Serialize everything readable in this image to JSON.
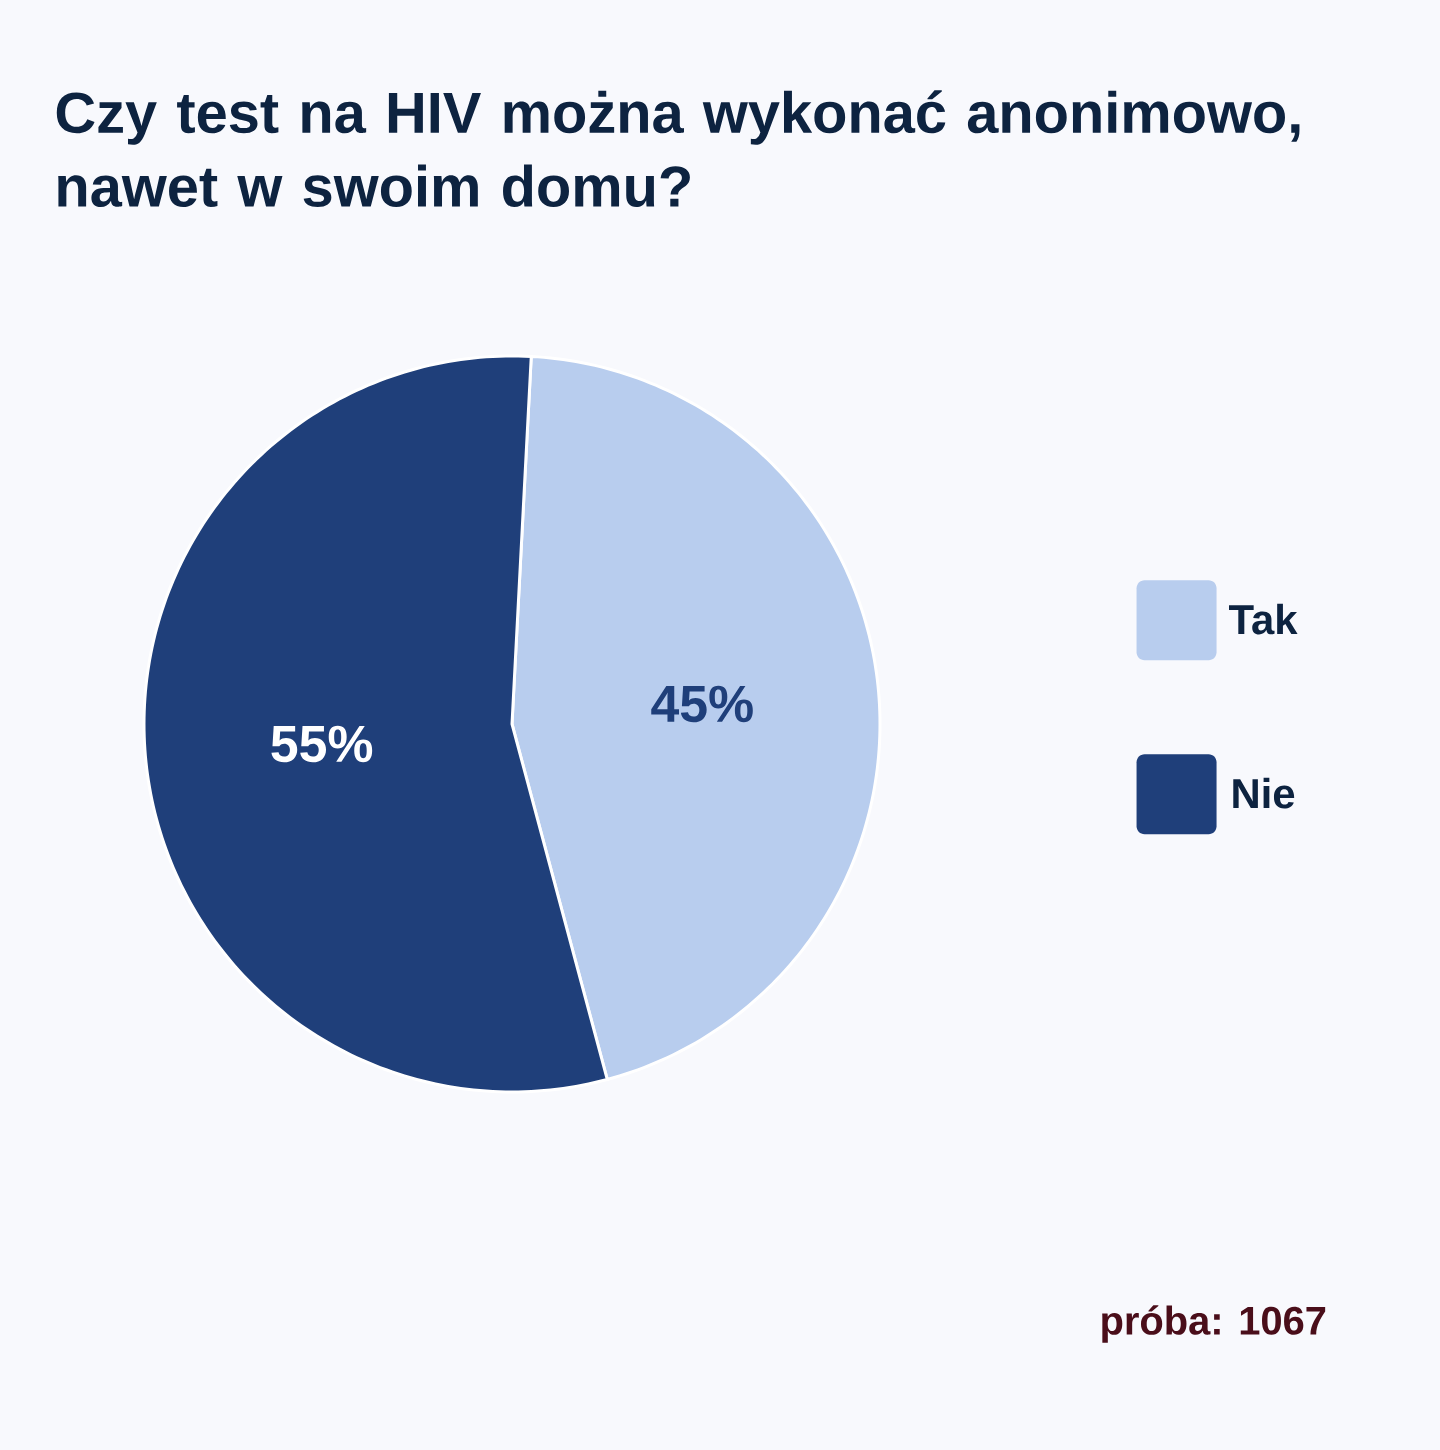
{
  "chart_data": {
    "type": "pie",
    "title": "Czy test na HIV można wykonać anonimowo, nawet w swoim domu?",
    "categories": [
      "Tak",
      "Nie"
    ],
    "values": [
      45,
      55
    ],
    "colors": [
      "#b8cdee",
      "#1f3f7a"
    ],
    "value_labels": [
      "45%",
      "55%"
    ],
    "legend": "right",
    "annotations": [
      "próba: 1067"
    ]
  }
}
